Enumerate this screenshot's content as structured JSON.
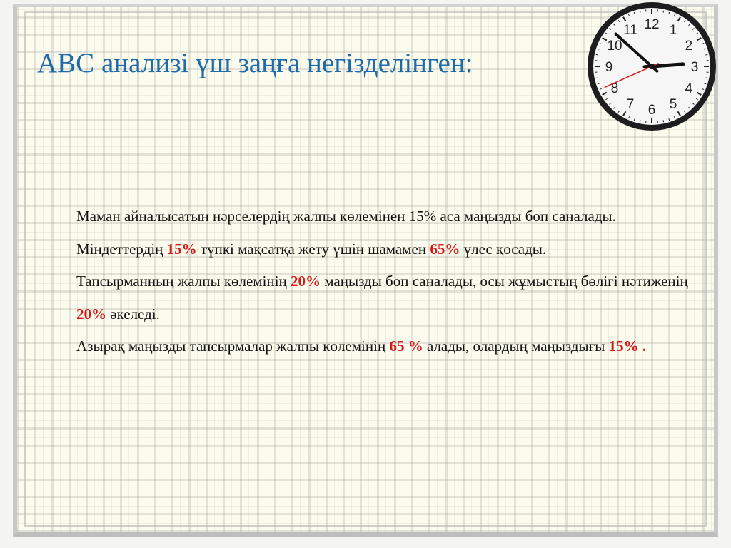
{
  "title": "ABC анализі үш заңға негізделінген:",
  "paragraphs": [
    {
      "parts": [
        {
          "text": "Маман айналысатын нәрселердің жалпы көлемінен 15% аса маңызды боп саналады. Міндеттердің ",
          "highlight": false
        },
        {
          "text": "15%",
          "highlight": true
        },
        {
          "text": " түпкі мақсатқа жету үшін шамамен ",
          "highlight": false
        },
        {
          "text": "65%",
          "highlight": true
        },
        {
          "text": " үлес қосады.",
          "highlight": false
        }
      ]
    },
    {
      "parts": [
        {
          "text": "Тапсырманның жалпы көлемінің ",
          "highlight": false
        },
        {
          "text": "20%",
          "highlight": true
        },
        {
          "text": " маңызды боп саналады, осы жұмыстың бөлігі нәтиженің ",
          "highlight": false
        },
        {
          "text": "20%",
          "highlight": true
        },
        {
          "text": " әкеледі.",
          "highlight": false
        }
      ]
    },
    {
      "parts": [
        {
          "text": "Азырақ маңызды тапсырмалар жалпы көлемінің ",
          "highlight": false
        },
        {
          "text": "65 %",
          "highlight": true
        },
        {
          "text": " алады, олардың маңыздығы ",
          "highlight": false
        },
        {
          "text": "15% .",
          "highlight": true
        }
      ]
    }
  ],
  "clock": {
    "numbers": [
      "12",
      "1",
      "2",
      "3",
      "4",
      "5",
      "6",
      "7",
      "8",
      "9",
      "10",
      "11"
    ],
    "hour": 2,
    "minute": 52,
    "second": 41
  },
  "colors": {
    "title": "#1f6aa8",
    "highlight": "#d51a1a",
    "second_hand": "#d51a1a"
  }
}
